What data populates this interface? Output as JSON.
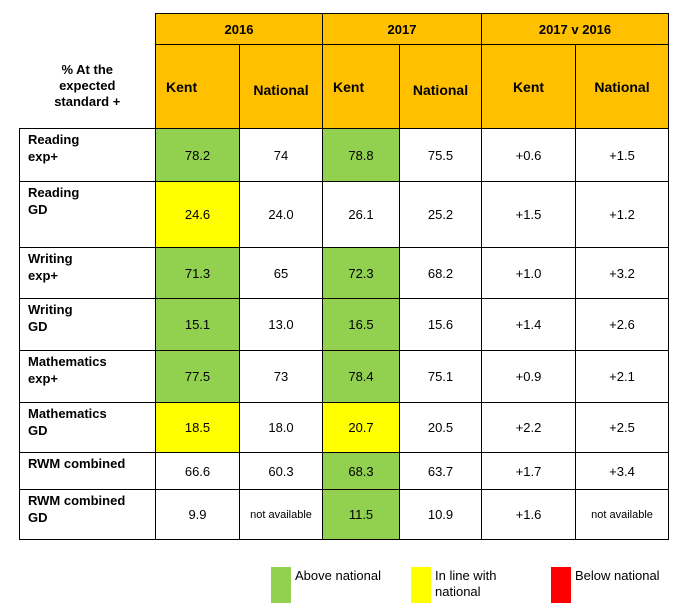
{
  "header": {
    "title_lines": [
      "% At the",
      "expected",
      "standard +"
    ],
    "years": [
      "2016",
      "2017",
      "2017 v 2016"
    ],
    "sub": [
      "Kent",
      "National",
      "Kent",
      "National",
      "Kent",
      "National"
    ]
  },
  "rows": [
    {
      "label": [
        "Reading",
        "exp+"
      ],
      "values": [
        "78.2",
        "74",
        "78.8",
        "75.5",
        "+0.6",
        "+1.5"
      ]
    },
    {
      "label": [
        "Reading",
        "GD"
      ],
      "values": [
        "24.6",
        "24.0",
        "26.1",
        "25.2",
        "+1.5",
        "+1.2"
      ]
    },
    {
      "label": [
        "Writing",
        "exp+"
      ],
      "values": [
        "71.3",
        "65",
        "72.3",
        "68.2",
        "+1.0",
        "+3.2"
      ]
    },
    {
      "label": [
        "Writing",
        "GD"
      ],
      "values": [
        "15.1",
        "13.0",
        "16.5",
        "15.6",
        "+1.4",
        "+2.6"
      ]
    },
    {
      "label": [
        "Mathematics",
        "exp+"
      ],
      "values": [
        "77.5",
        "73",
        "78.4",
        "75.1",
        "+0.9",
        "+2.1"
      ]
    },
    {
      "label": [
        "Mathematics",
        "GD"
      ],
      "values": [
        "18.5",
        "18.0",
        "20.7",
        "20.5",
        "+2.2",
        "+2.5"
      ]
    },
    {
      "label": [
        "RWM combined",
        ""
      ],
      "values": [
        "66.6",
        "60.3",
        "68.3",
        "63.7",
        "+1.7",
        "+3.4"
      ]
    },
    {
      "label": [
        "RWM combined",
        "GD"
      ],
      "values": [
        "9.9",
        "not available",
        "11.5",
        "10.9",
        "+1.6",
        "not available"
      ]
    }
  ],
  "highlights": {
    "kent_2016": [
      "above",
      "in_line",
      "above",
      "above",
      "above",
      "in_line",
      "none",
      "none"
    ],
    "kent_2017": [
      "above",
      "none",
      "above",
      "above",
      "above",
      "in_line",
      "above",
      "above"
    ]
  },
  "colors": {
    "header": "#ffc000",
    "above": "#92d050",
    "in_line": "#ffff00",
    "below": "#ff0000"
  },
  "legend": {
    "above": "Above national",
    "in_line": [
      "In line with",
      "national"
    ],
    "below": "Below national"
  }
}
